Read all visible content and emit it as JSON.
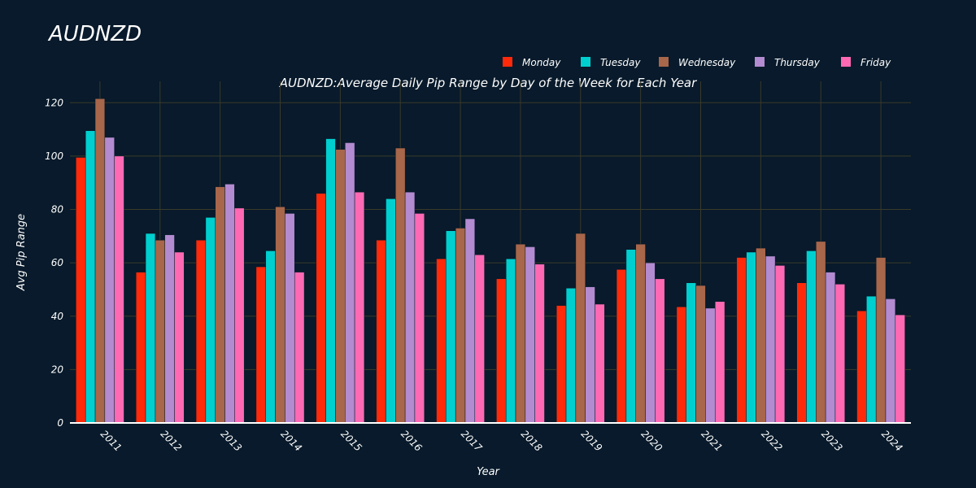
{
  "page_title": "AUDNZD",
  "chart_data": {
    "type": "bar",
    "title": "AUDNZD:Average Daily Pip Range by Day of the Week for Each Year",
    "xlabel": "Year",
    "ylabel": "Avg Pip Range",
    "ylim": [
      0,
      128
    ],
    "yticks": [
      0,
      20,
      40,
      60,
      80,
      100,
      120
    ],
    "grid": true,
    "legend_position": "top-right",
    "categories": [
      "2011",
      "2012",
      "2013",
      "2014",
      "2015",
      "2016",
      "2017",
      "2018",
      "2019",
      "2020",
      "2021",
      "2022",
      "2023",
      "2024"
    ],
    "series": [
      {
        "name": "Monday",
        "color": "#ff2a0a",
        "values": [
          99.5,
          56.5,
          68.5,
          58.5,
          86,
          68.5,
          61.5,
          54,
          44,
          57.5,
          43.5,
          62,
          52.5,
          42
        ]
      },
      {
        "name": "Tuesday",
        "color": "#00cfcf",
        "values": [
          109.5,
          71,
          77,
          64.5,
          106.5,
          84,
          72,
          61.5,
          50.5,
          65,
          52.5,
          64,
          64.5,
          47.5
        ]
      },
      {
        "name": "Wednesday",
        "color": "#a8664a",
        "values": [
          121.5,
          68.5,
          88.5,
          81,
          102.5,
          103,
          73,
          67,
          71,
          67,
          51.5,
          65.5,
          68,
          62
        ]
      },
      {
        "name": "Thursday",
        "color": "#b38bd0",
        "values": [
          107,
          70.5,
          89.5,
          78.5,
          105,
          86.5,
          76.5,
          66,
          51,
          60,
          43,
          62.5,
          56.5,
          46.5
        ]
      },
      {
        "name": "Friday",
        "color": "#ff69b4",
        "values": [
          100,
          64,
          80.5,
          56.5,
          86.5,
          78.5,
          63,
          59.5,
          44.5,
          54,
          45.5,
          59,
          52,
          40.5
        ]
      }
    ]
  }
}
